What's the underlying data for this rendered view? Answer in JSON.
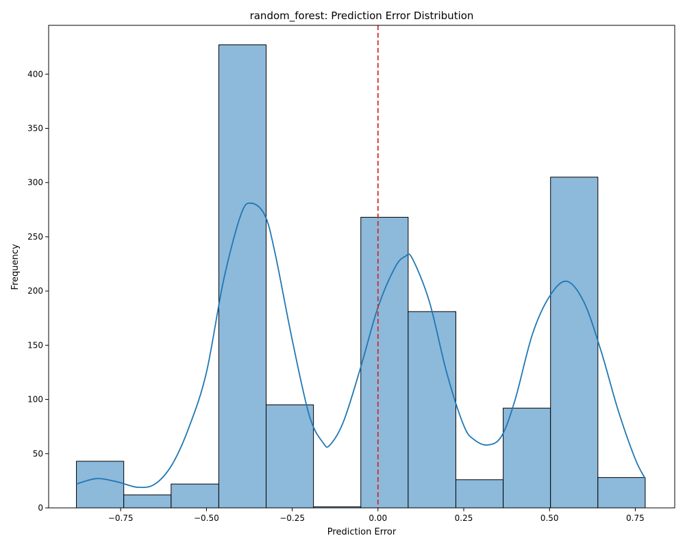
{
  "chart_data": {
    "type": "bar",
    "title": "random_forest: Prediction Error Distribution",
    "xlabel": "Prediction Error",
    "ylabel": "Frequency",
    "xlim": [
      -0.96,
      0.865
    ],
    "ylim": [
      0,
      445
    ],
    "x_ticks": [
      -0.75,
      -0.5,
      -0.25,
      0.0,
      0.25,
      0.5,
      0.75
    ],
    "x_tick_labels": [
      "−0.75",
      "−0.50",
      "−0.25",
      "0.00",
      "0.25",
      "0.50",
      "0.75"
    ],
    "y_ticks": [
      0,
      50,
      100,
      150,
      200,
      250,
      300,
      350,
      400
    ],
    "y_tick_labels": [
      "0",
      "50",
      "100",
      "150",
      "200",
      "250",
      "300",
      "350",
      "400"
    ],
    "bin_edges": [
      -0.879,
      -0.741,
      -0.603,
      -0.464,
      -0.326,
      -0.188,
      -0.05,
      0.088,
      0.227,
      0.365,
      0.503,
      0.641,
      0.779
    ],
    "values": [
      43,
      12,
      22,
      427,
      95,
      1,
      268,
      181,
      26,
      92,
      305,
      28
    ],
    "kde": {
      "x": [
        -0.879,
        -0.82,
        -0.76,
        -0.7,
        -0.65,
        -0.6,
        -0.55,
        -0.5,
        -0.45,
        -0.4,
        -0.37,
        -0.33,
        -0.3,
        -0.25,
        -0.2,
        -0.16,
        -0.14,
        -0.1,
        -0.05,
        0.0,
        0.05,
        0.08,
        0.1,
        0.15,
        0.2,
        0.25,
        0.28,
        0.32,
        0.36,
        0.4,
        0.45,
        0.5,
        0.55,
        0.6,
        0.65,
        0.7,
        0.75,
        0.779
      ],
      "y": [
        22,
        27,
        24,
        19,
        22,
        40,
        75,
        125,
        210,
        270,
        281,
        270,
        235,
        155,
        85,
        60,
        58,
        80,
        130,
        185,
        222,
        232,
        230,
        190,
        125,
        76,
        63,
        58,
        66,
        100,
        160,
        195,
        209,
        190,
        145,
        90,
        45,
        27
      ]
    },
    "reference_line": {
      "x": 0.0,
      "style": "dashed",
      "color": "#d62728"
    },
    "colors": {
      "bar_fill": "#8db9da",
      "bar_edge": "#000000",
      "kde": "#1f77b4"
    },
    "grid": false,
    "legend": "none"
  }
}
